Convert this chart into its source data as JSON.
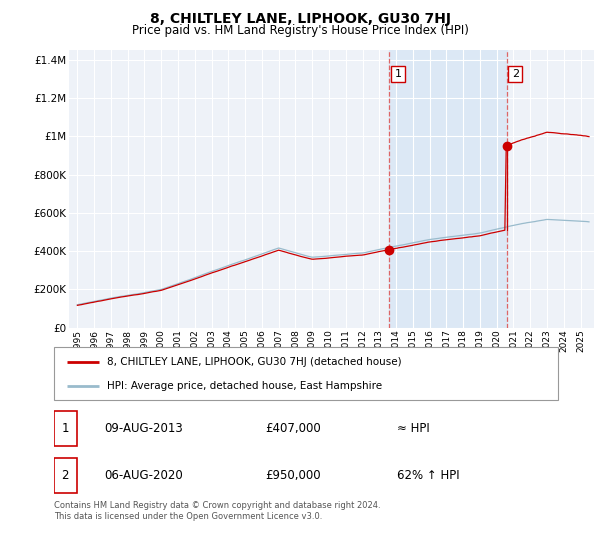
{
  "title": "8, CHILTLEY LANE, LIPHOOK, GU30 7HJ",
  "subtitle": "Price paid vs. HM Land Registry's House Price Index (HPI)",
  "background_color": "#ffffff",
  "plot_bg_color": "#eef2f8",
  "highlight_color": "#dce8f5",
  "grid_color": "#ffffff",
  "line1_color": "#cc0000",
  "line2_color": "#99bbcc",
  "vline_color": "#dd6666",
  "sale1_date_num": 2013.6,
  "sale1_price": 407000,
  "sale2_date_num": 2020.6,
  "sale2_price": 950000,
  "ylim_min": 0,
  "ylim_max": 1450000,
  "xlim_min": 1994.5,
  "xlim_max": 2025.8,
  "legend_label1": "8, CHILTLEY LANE, LIPHOOK, GU30 7HJ (detached house)",
  "legend_label2": "HPI: Average price, detached house, East Hampshire",
  "table_row1": [
    "1",
    "09-AUG-2013",
    "£407,000",
    "≈ HPI"
  ],
  "table_row2": [
    "2",
    "06-AUG-2020",
    "£950,000",
    "62% ↑ HPI"
  ],
  "footnote": "Contains HM Land Registry data © Crown copyright and database right 2024.\nThis data is licensed under the Open Government Licence v3.0.",
  "ytick_labels": [
    "£0",
    "£200K",
    "£400K",
    "£600K",
    "£800K",
    "£1M",
    "£1.2M",
    "£1.4M"
  ],
  "ytick_values": [
    0,
    200000,
    400000,
    600000,
    800000,
    1000000,
    1200000,
    1400000
  ],
  "xtick_years": [
    1995,
    1996,
    1997,
    1998,
    1999,
    2000,
    2001,
    2002,
    2003,
    2004,
    2005,
    2006,
    2007,
    2008,
    2009,
    2010,
    2011,
    2012,
    2013,
    2014,
    2015,
    2016,
    2017,
    2018,
    2019,
    2020,
    2021,
    2022,
    2023,
    2024,
    2025
  ]
}
